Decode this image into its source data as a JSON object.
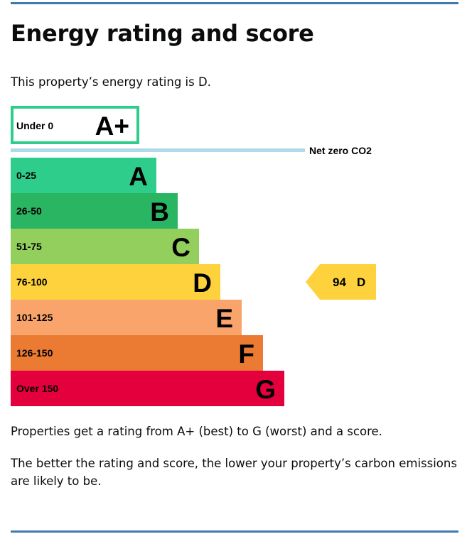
{
  "page": {
    "title": "Energy rating and score",
    "intro": "This property’s energy rating is D.",
    "paragraph_1": "Properties get a rating from A+ (best) to G (worst) and a score.",
    "paragraph_2": "The better the rating and score, the lower your property’s carbon emissions are likely to be."
  },
  "chart_data": {
    "type": "bar",
    "title": "",
    "categories": [
      "A",
      "B",
      "C",
      "D",
      "E",
      "F",
      "G"
    ],
    "ranges": [
      "0-25",
      "26-50",
      "51-75",
      "76-100",
      "101-125",
      "126-150",
      "Over 150"
    ],
    "colors": [
      "#2ecd8b",
      "#2ab562",
      "#92cf5c",
      "#fdd23d",
      "#f9a46b",
      "#eb7a33",
      "#e4003d"
    ],
    "top_band": {
      "range": "Under 0",
      "letter": "A+",
      "color": "#2ecd8b",
      "style": "outline"
    },
    "net_zero": {
      "label": "Net zero CO2",
      "color": "#b0daea"
    },
    "current": {
      "score": "94",
      "letter": "D",
      "band": "D",
      "color": "#fdd23d"
    }
  }
}
